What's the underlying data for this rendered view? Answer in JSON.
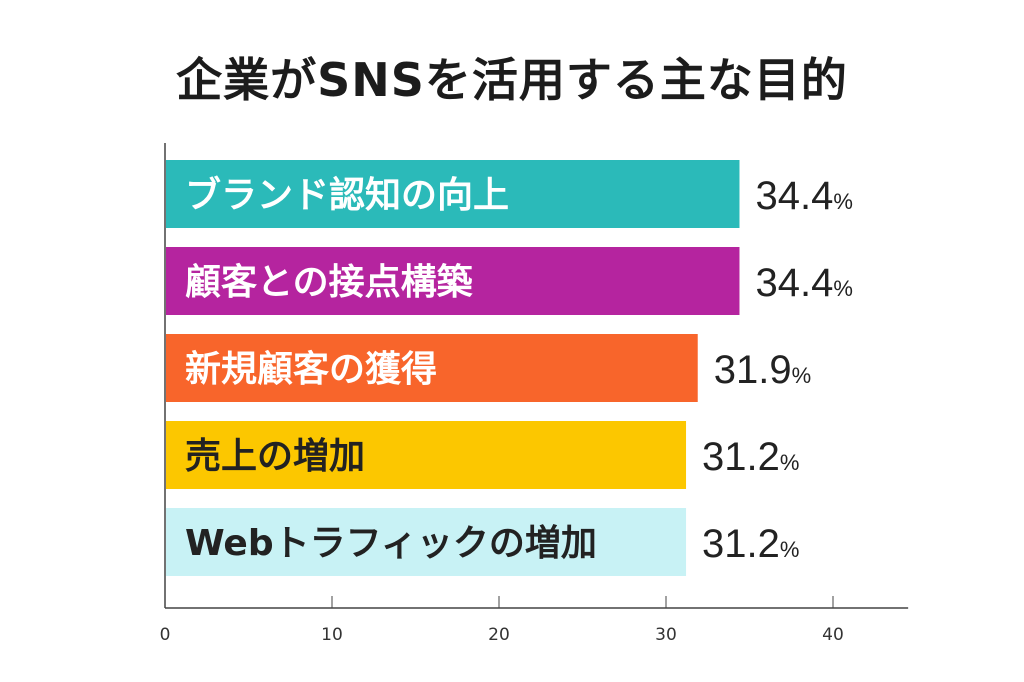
{
  "chart_data": {
    "type": "bar",
    "orientation": "horizontal",
    "title": "企業がSNSを活用する主な目的",
    "categories": [
      "ブランド認知の向上",
      "顧客との接点構築",
      "新規顧客の獲得",
      "売上の増加",
      "Webトラフィックの増加"
    ],
    "values": [
      34.4,
      34.4,
      31.9,
      31.2,
      31.2
    ],
    "value_labels": [
      "34.4",
      "34.4",
      "31.9",
      "31.2",
      "31.2"
    ],
    "unit": "%",
    "colors": [
      "#2bbab9",
      "#b5249f",
      "#f8652b",
      "#fcc700",
      "#c8f2f5"
    ],
    "label_colors": [
      "#ffffff",
      "#ffffff",
      "#ffffff",
      "#222222",
      "#222222"
    ],
    "xlabel": "",
    "ylabel": "",
    "xlim": [
      0,
      44.5
    ],
    "xticks": [
      0,
      10,
      20,
      30,
      40
    ],
    "xtick_labels": [
      "0",
      "10",
      "20",
      "30",
      "40"
    ],
    "grid": false,
    "legend": "none"
  }
}
